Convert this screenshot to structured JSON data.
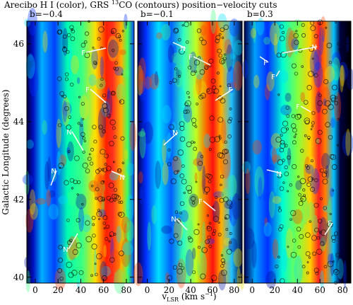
{
  "chart_data": {
    "type": "image",
    "title": [
      "Arecibo H I (color), GRS ",
      "13",
      "CO (contours) position−velocity cuts"
    ],
    "y_label": "Galactic Longitude (degrees)",
    "x_label": [
      "v",
      "LSR",
      " (km s",
      "−1",
      ")"
    ],
    "ylim": [
      39.85,
      46.58
    ],
    "yticks": [
      40,
      42,
      44,
      46
    ],
    "panels": [
      {
        "label": "b=−0.4",
        "xlim": [
          -7.4,
          86.8
        ],
        "xticks": [
          0,
          20,
          40,
          60,
          80
        ],
        "annotations": [
          "F",
          "F",
          "N",
          "N",
          "N",
          "N"
        ]
      },
      {
        "label": "b=−0.1",
        "xlim": [
          -8.8,
          87.3
        ],
        "xticks": [
          0,
          20,
          40,
          60,
          80
        ],
        "annotations": [
          "N",
          "F",
          "F",
          "N",
          "F",
          "N"
        ]
      },
      {
        "label": "b=0.3",
        "xlim": [
          -7,
          87.3
        ],
        "xticks": [
          0,
          20,
          40,
          60,
          80
        ],
        "annotations": [
          "N",
          "F",
          "F",
          "F",
          "N",
          "F"
        ]
      }
    ]
  }
}
